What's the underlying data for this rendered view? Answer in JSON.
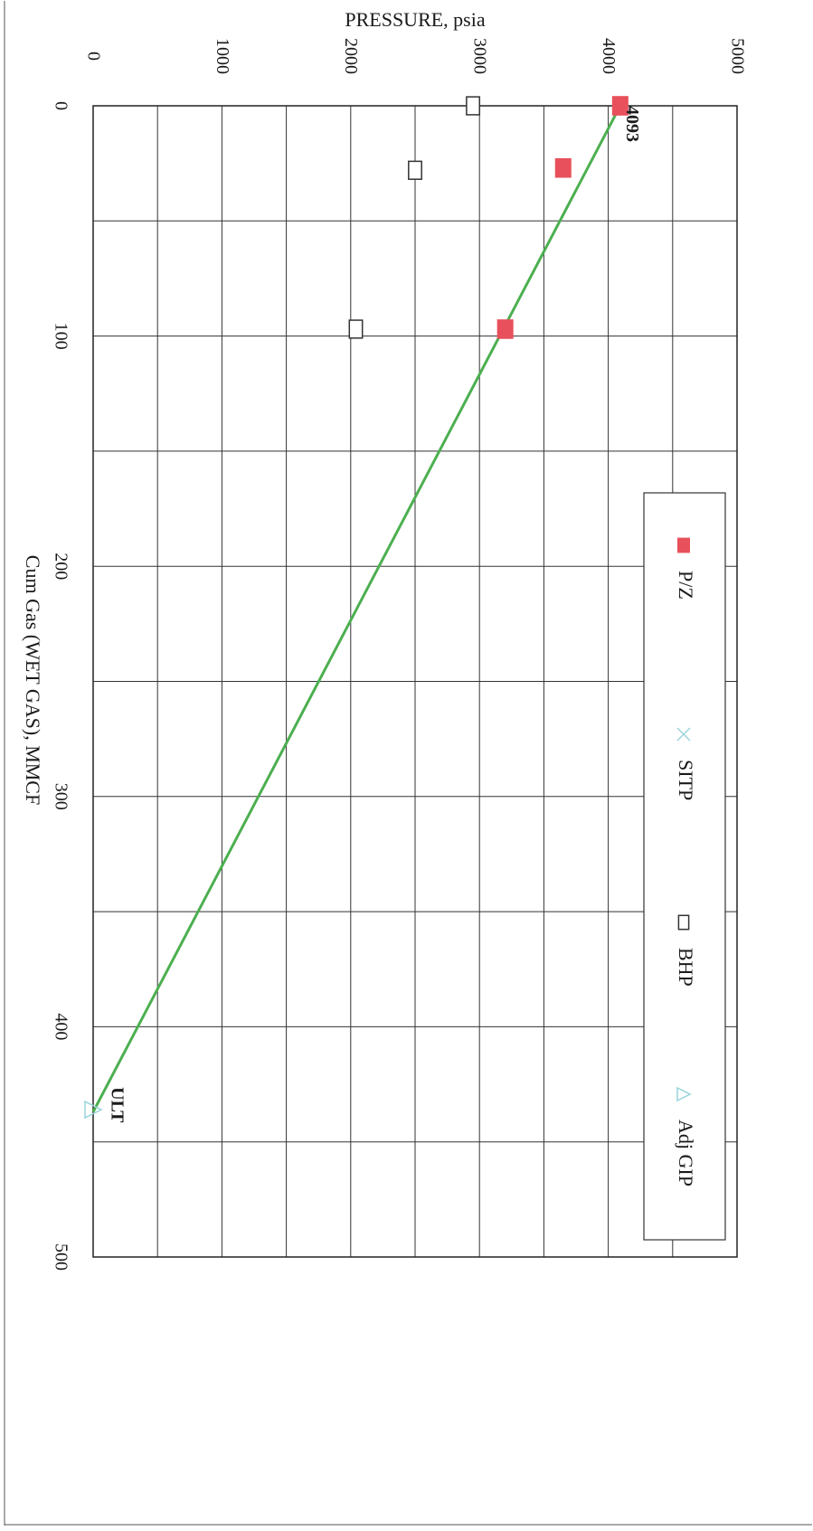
{
  "chart_data": {
    "type": "scatter",
    "orientation": "rotated-90-clockwise",
    "xlabel": "Cum Gas (WET GAS), MMCF",
    "ylabel": "PRESSURE, psia",
    "xlim": [
      0,
      500
    ],
    "ylim": [
      0,
      5000
    ],
    "x_ticks": [
      0,
      100,
      200,
      300,
      400,
      500
    ],
    "x_tick_labels": [
      "0",
      "100",
      "200",
      "300",
      "400",
      "500"
    ],
    "y_ticks": [
      0,
      1000,
      2000,
      3000,
      4000,
      5000
    ],
    "y_tick_labels": [
      "0",
      "1000",
      "2000",
      "3000",
      "4000",
      "5000"
    ],
    "grid": true,
    "legend_position": "right",
    "series": [
      {
        "name": "P/Z",
        "marker": "filled-square",
        "color": "#e8505b",
        "x": [
          0,
          27,
          97
        ],
        "y": [
          4093,
          3650,
          3200
        ]
      },
      {
        "name": "SITP",
        "marker": "x",
        "color": "#9ad4dc",
        "x": [],
        "y": []
      },
      {
        "name": "BHP",
        "marker": "open-square",
        "color": "#333333",
        "x": [
          0,
          28,
          97
        ],
        "y": [
          2950,
          2500,
          2040
        ]
      },
      {
        "name": "Adj GIP",
        "marker": "open-triangle",
        "color": "#9ad4dc",
        "x": [
          436
        ],
        "y": [
          0
        ]
      }
    ],
    "trendline": {
      "color": "#4caf50",
      "x": [
        0,
        437
      ],
      "y": [
        4093,
        0
      ]
    },
    "annotations": [
      {
        "text": "4093",
        "x": 0,
        "y": 4093
      },
      {
        "text": "ULT",
        "x": 430,
        "y": 260
      }
    ]
  }
}
